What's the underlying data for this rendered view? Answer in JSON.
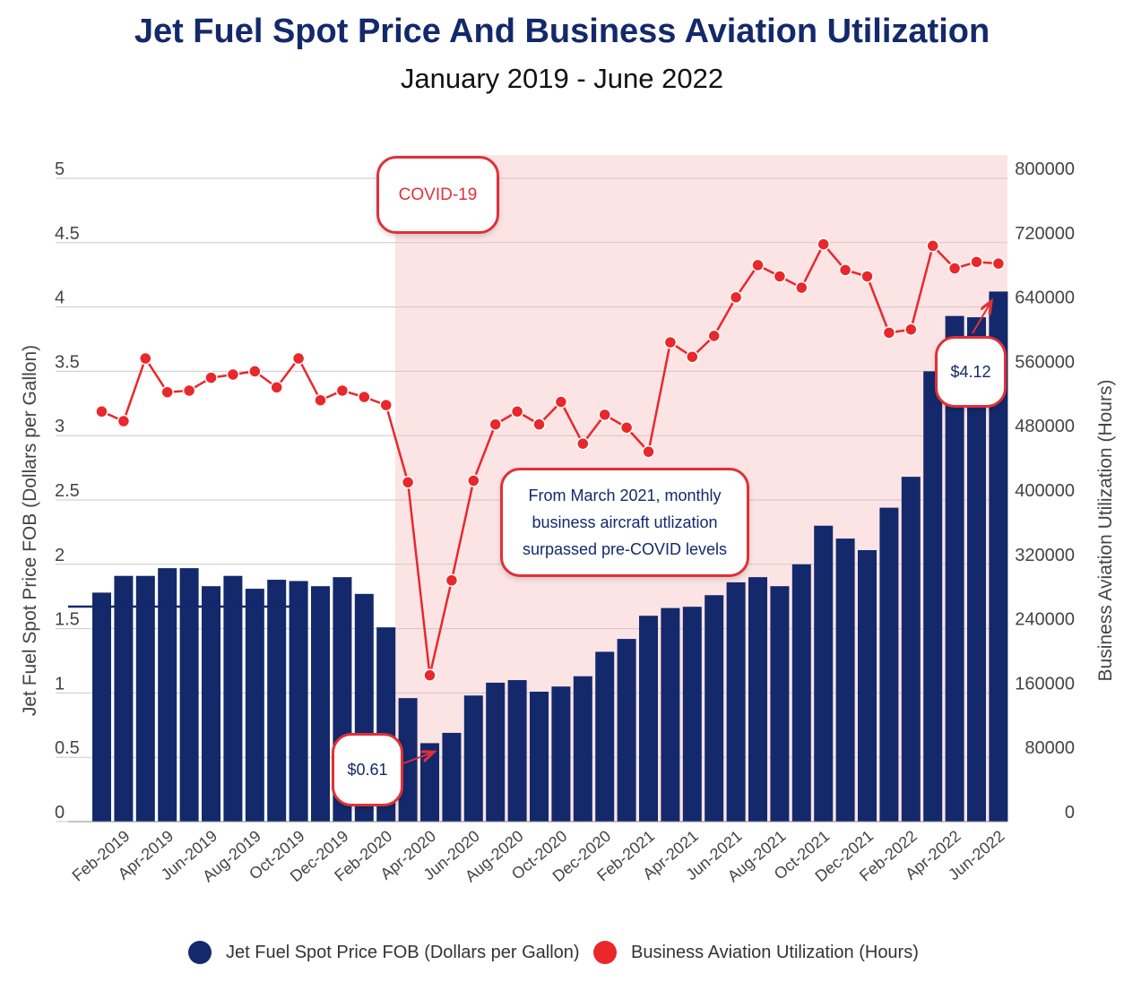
{
  "title": "Jet Fuel Spot Price And Business Aviation Utilization",
  "subtitle": "January 2019 - June 2022",
  "callouts": {
    "covid": "COVID-19",
    "note": "From March 2021, monthly business aircraft utlization surpassed pre-COVID levels",
    "low": "$0.61",
    "high": "$4.12"
  },
  "colors": {
    "fuel": "#13296b",
    "utilization": "#e8282b",
    "covid_band": "#fce4e5",
    "title": "#13296b"
  },
  "chart_data": {
    "type": "bar+line",
    "title": "Jet Fuel Spot Price And Business Aviation Utilization",
    "subtitle": "January 2019 - June 2022",
    "x": [
      "Jan-2019",
      "Feb-2019",
      "Mar-2019",
      "Apr-2019",
      "May-2019",
      "Jun-2019",
      "Jul-2019",
      "Aug-2019",
      "Sep-2019",
      "Oct-2019",
      "Nov-2019",
      "Dec-2019",
      "Jan-2020",
      "Feb-2020",
      "Mar-2020",
      "Apr-2020",
      "May-2020",
      "Jun-2020",
      "Jul-2020",
      "Aug-2020",
      "Sep-2020",
      "Oct-2020",
      "Nov-2020",
      "Dec-2020",
      "Jan-2021",
      "Feb-2021",
      "Mar-2021",
      "Apr-2021",
      "May-2021",
      "Jun-2021",
      "Jul-2021",
      "Aug-2021",
      "Sep-2021",
      "Oct-2021",
      "Nov-2021",
      "Dec-2021",
      "Jan-2022",
      "Feb-2022",
      "Mar-2022",
      "Apr-2022",
      "May-2022",
      "Jun-2022"
    ],
    "tick_labels": [
      "Feb-2019",
      "Apr-2019",
      "Jun-2019",
      "Aug-2019",
      "Oct-2019",
      "Dec-2019",
      "Feb-2020",
      "Apr-2020",
      "Jun-2020",
      "Aug-2020",
      "Oct-2020",
      "Dec-2020",
      "Feb-2021",
      "Apr-2021",
      "Jun-2021",
      "Aug-2021",
      "Oct-2021",
      "Dec-2021",
      "Feb-2022",
      "Apr-2022",
      "Jun-2022"
    ],
    "y_left": {
      "label": "Jet Fuel Spot Price FOB (Dollars per Gallon)",
      "range": [
        0,
        5
      ],
      "ticks": [
        "0",
        "0.5",
        "1",
        "1.5",
        "2",
        "2.5",
        "3",
        "3.5",
        "4",
        "4.5",
        "5"
      ]
    },
    "y_right": {
      "label": "Business Aviation Utilization (Hours)",
      "range": [
        0,
        800000
      ],
      "ticks": [
        "0",
        "80000",
        "160000",
        "240000",
        "320000",
        "400000",
        "480000",
        "560000",
        "640000",
        "720000",
        "800000"
      ]
    },
    "grid": true,
    "legend_position": "bottom",
    "covid_start": "Mar-2020",
    "series": [
      {
        "name": "Jet Fuel Spot Price FOB (Dollars per Gallon)",
        "type": "bar",
        "axis": "left",
        "values": [
          1.78,
          1.91,
          1.91,
          1.97,
          1.97,
          1.83,
          1.91,
          1.81,
          1.88,
          1.87,
          1.83,
          1.9,
          1.77,
          1.51,
          0.96,
          0.61,
          0.69,
          0.98,
          1.08,
          1.1,
          1.01,
          1.05,
          1.13,
          1.32,
          1.42,
          1.6,
          1.66,
          1.67,
          1.76,
          1.86,
          1.9,
          1.83,
          2.0,
          2.3,
          2.2,
          2.11,
          2.44,
          2.68,
          3.5,
          3.93,
          3.92,
          4.12
        ]
      },
      {
        "name": "Business Aviation Utilization (Hours)",
        "type": "line",
        "axis": "right",
        "values": [
          510000,
          498000,
          576000,
          534000,
          536000,
          552000,
          556000,
          560000,
          540000,
          576000,
          524000,
          536000,
          528000,
          518000,
          422000,
          182000,
          300000,
          424000,
          494000,
          510000,
          494000,
          522000,
          470000,
          506000,
          490000,
          460000,
          596000,
          578000,
          604000,
          652000,
          692000,
          678000,
          664000,
          718000,
          686000,
          678000,
          608000,
          612000,
          716000,
          688000,
          696000,
          694000
        ]
      }
    ]
  },
  "legend": {
    "fuel": "Jet Fuel Spot Price FOB (Dollars per Gallon)",
    "util": "Business Aviation Utilization (Hours)"
  }
}
